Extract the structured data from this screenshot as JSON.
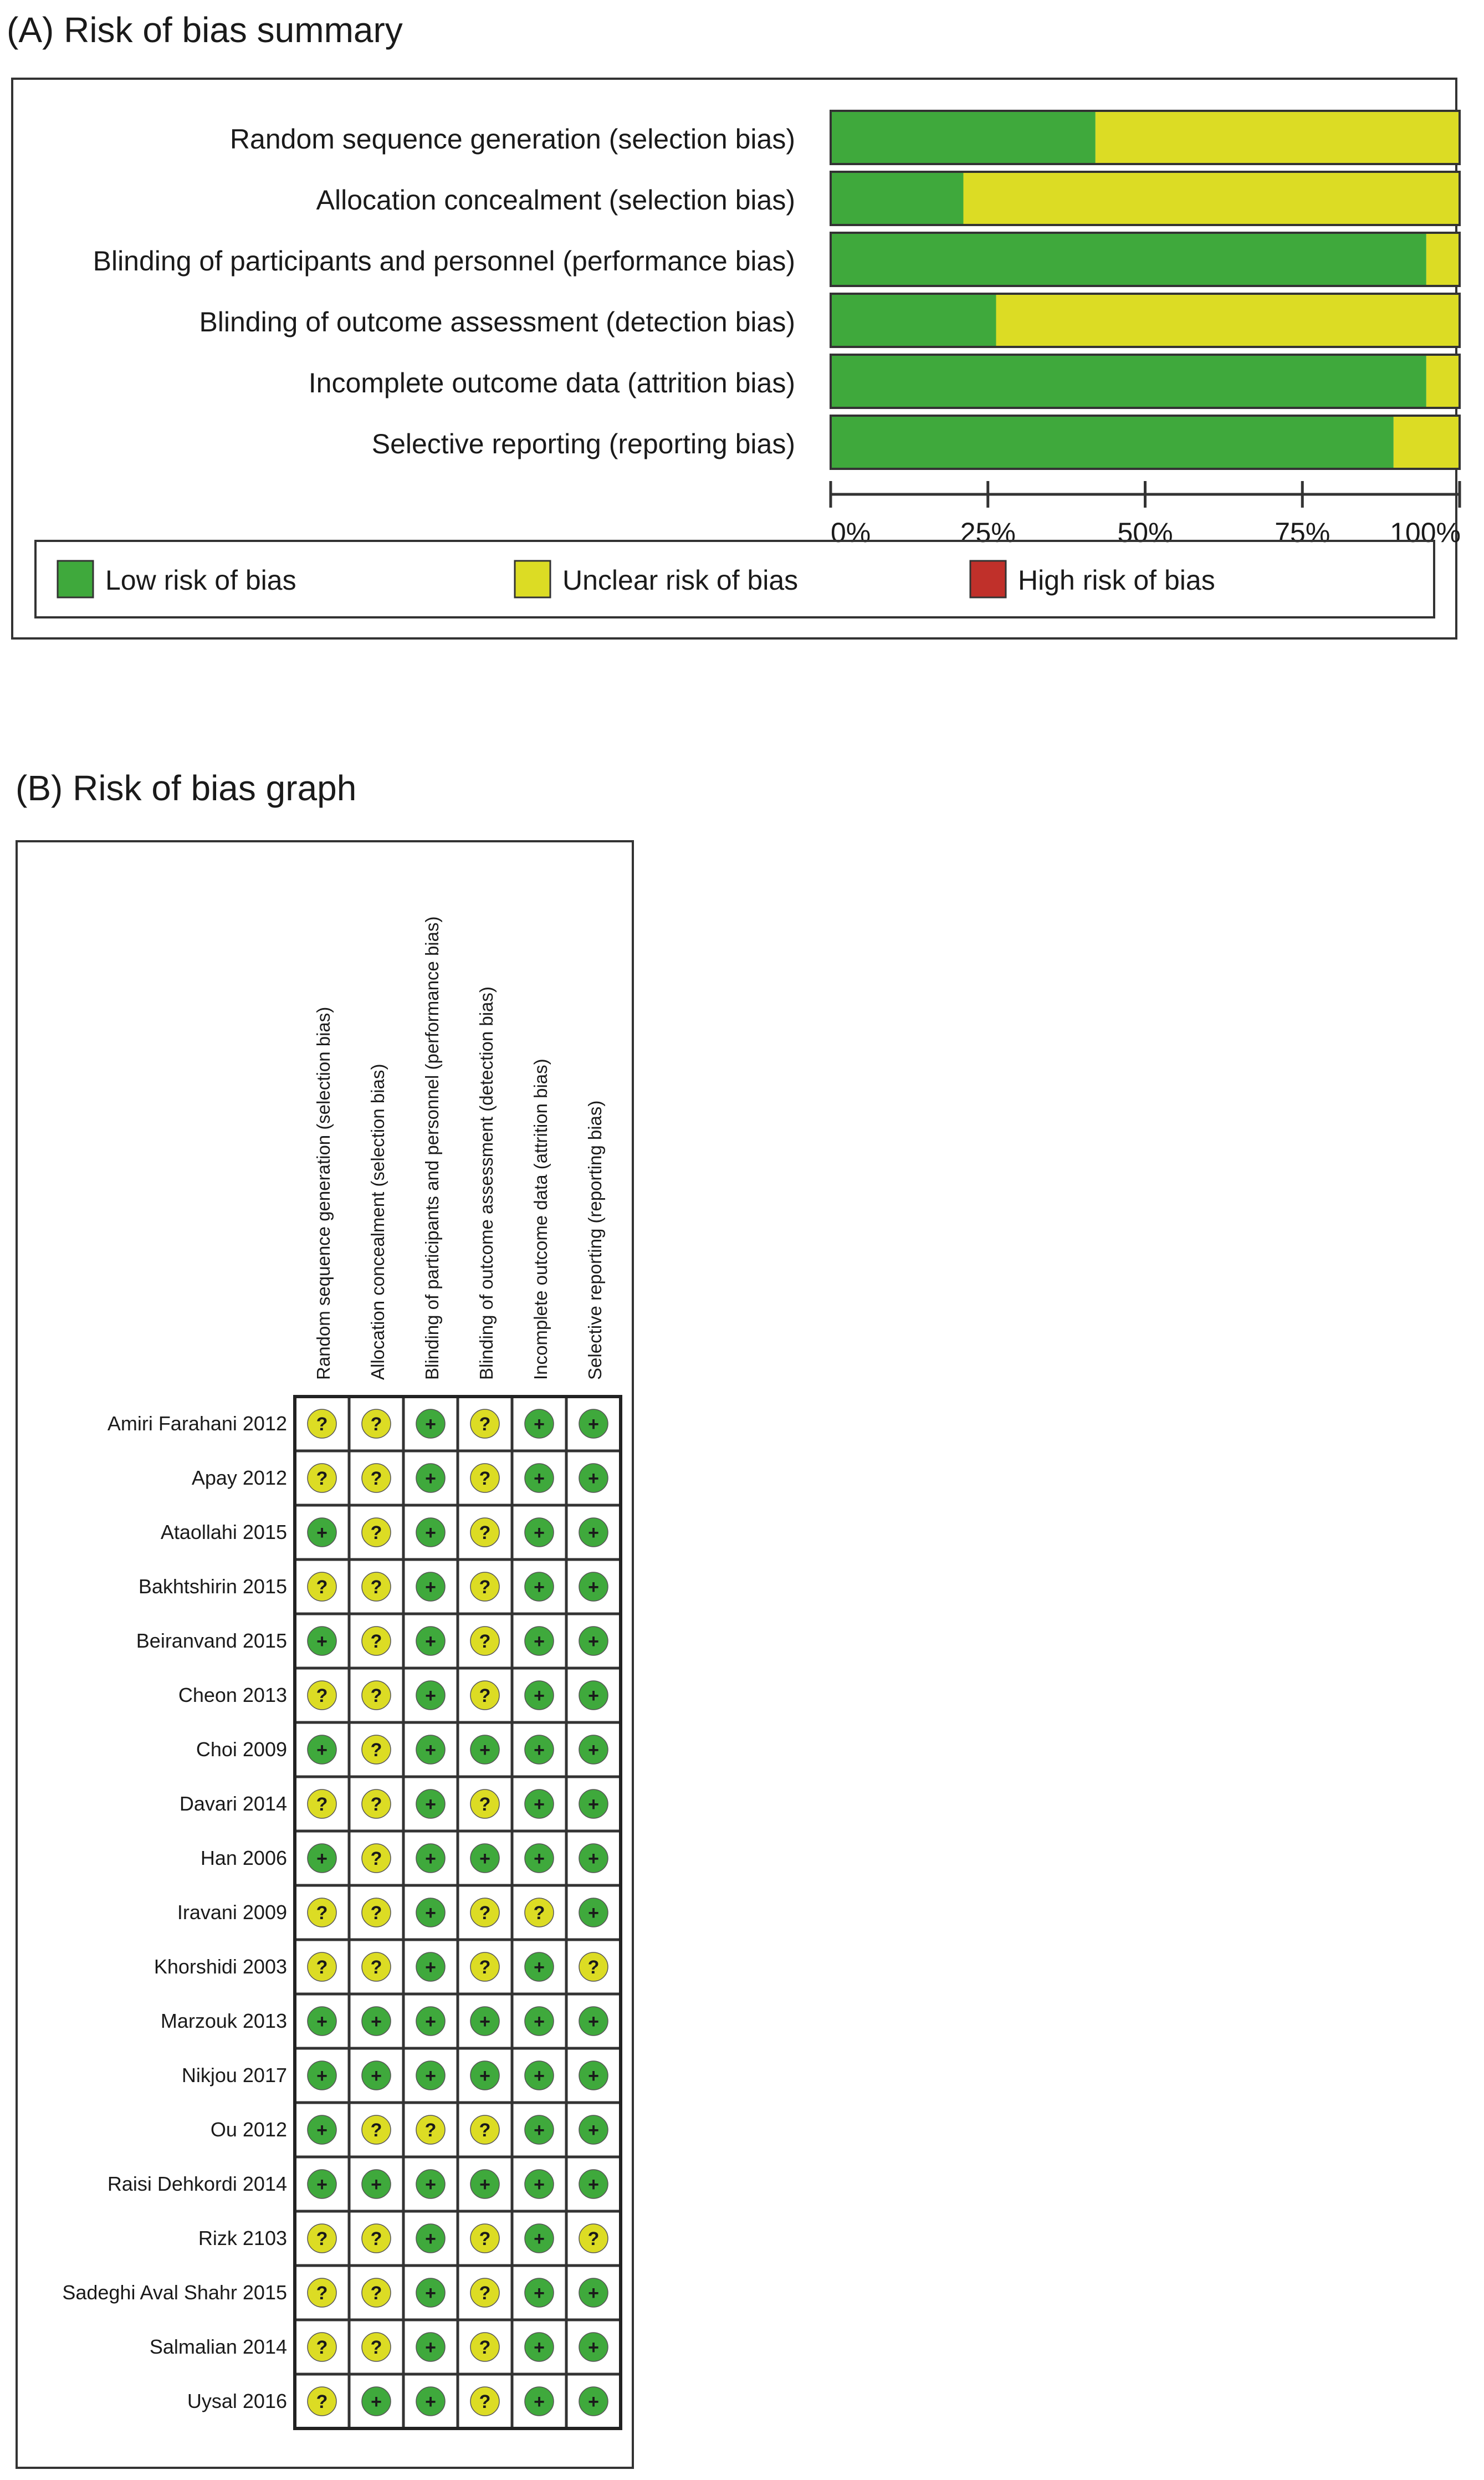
{
  "panel_a": {
    "title": "(A) Risk of bias summary"
  },
  "panel_b": {
    "title": "(B) Risk of bias graph"
  },
  "colors": {
    "low": "#3fa93c",
    "unclear": "#dcdc24",
    "high": "#c0302a",
    "frame": "#333333"
  },
  "chart_data": [
    {
      "type": "bar",
      "stacked": true,
      "orientation": "horizontal",
      "title": "(A) Risk of bias summary",
      "categories": [
        "Random sequence generation (selection bias)",
        "Allocation concealment (selection bias)",
        "Blinding of participants and personnel (performance bias)",
        "Blinding of outcome assessment (detection bias)",
        "Incomplete outcome data (attrition bias)",
        "Selective reporting (reporting bias)"
      ],
      "series": [
        {
          "name": "Low risk of bias",
          "color": "#3fa93c",
          "values": [
            42.1,
            21.1,
            94.7,
            26.3,
            94.7,
            89.5
          ]
        },
        {
          "name": "Unclear risk of bias",
          "color": "#dcdc24",
          "values": [
            57.9,
            78.9,
            5.3,
            73.7,
            5.3,
            10.5
          ]
        },
        {
          "name": "High risk of bias",
          "color": "#c0302a",
          "values": [
            0,
            0,
            0,
            0,
            0,
            0
          ]
        }
      ],
      "xlim": [
        0,
        100
      ],
      "ticks": [
        "0%",
        "25%",
        "50%",
        "75%",
        "100%"
      ],
      "legend_position": "bottom"
    },
    {
      "type": "table",
      "title": "(B) Risk of bias graph",
      "columns": [
        "Random sequence generation (selection bias)",
        "Allocation concealment (selection bias)",
        "Blinding of participants and personnel (performance bias)",
        "Blinding of outcome assessment (detection bias)",
        "Incomplete outcome data (attrition bias)",
        "Selective reporting (reporting bias)"
      ],
      "symbols": {
        "low": "+",
        "unclear": "?"
      },
      "rows": [
        {
          "study": "Amiri Farahani 2012",
          "ratings": [
            "unclear",
            "unclear",
            "low",
            "unclear",
            "low",
            "low"
          ]
        },
        {
          "study": "Apay 2012",
          "ratings": [
            "unclear",
            "unclear",
            "low",
            "unclear",
            "low",
            "low"
          ]
        },
        {
          "study": "Ataollahi 2015",
          "ratings": [
            "low",
            "unclear",
            "low",
            "unclear",
            "low",
            "low"
          ]
        },
        {
          "study": "Bakhtshirin 2015",
          "ratings": [
            "unclear",
            "unclear",
            "low",
            "unclear",
            "low",
            "low"
          ]
        },
        {
          "study": "Beiranvand 2015",
          "ratings": [
            "low",
            "unclear",
            "low",
            "unclear",
            "low",
            "low"
          ]
        },
        {
          "study": "Cheon 2013",
          "ratings": [
            "unclear",
            "unclear",
            "low",
            "unclear",
            "low",
            "low"
          ]
        },
        {
          "study": "Choi 2009",
          "ratings": [
            "low",
            "unclear",
            "low",
            "low",
            "low",
            "low"
          ]
        },
        {
          "study": "Davari 2014",
          "ratings": [
            "unclear",
            "unclear",
            "low",
            "unclear",
            "low",
            "low"
          ]
        },
        {
          "study": "Han 2006",
          "ratings": [
            "low",
            "unclear",
            "low",
            "low",
            "low",
            "low"
          ]
        },
        {
          "study": "Iravani 2009",
          "ratings": [
            "unclear",
            "unclear",
            "low",
            "unclear",
            "unclear",
            "low"
          ]
        },
        {
          "study": "Khorshidi 2003",
          "ratings": [
            "unclear",
            "unclear",
            "low",
            "unclear",
            "low",
            "unclear"
          ]
        },
        {
          "study": "Marzouk 2013",
          "ratings": [
            "low",
            "low",
            "low",
            "low",
            "low",
            "low"
          ]
        },
        {
          "study": "Nikjou 2017",
          "ratings": [
            "low",
            "low",
            "low",
            "low",
            "low",
            "low"
          ]
        },
        {
          "study": "Ou 2012",
          "ratings": [
            "low",
            "unclear",
            "unclear",
            "unclear",
            "low",
            "low"
          ]
        },
        {
          "study": "Raisi Dehkordi 2014",
          "ratings": [
            "low",
            "low",
            "low",
            "low",
            "low",
            "low"
          ]
        },
        {
          "study": "Rizk 2103",
          "ratings": [
            "unclear",
            "unclear",
            "low",
            "unclear",
            "low",
            "unclear"
          ]
        },
        {
          "study": "Sadeghi Aval Shahr 2015",
          "ratings": [
            "unclear",
            "unclear",
            "low",
            "unclear",
            "low",
            "low"
          ]
        },
        {
          "study": "Salmalian 2014",
          "ratings": [
            "unclear",
            "unclear",
            "low",
            "unclear",
            "low",
            "low"
          ]
        },
        {
          "study": "Uysal 2016",
          "ratings": [
            "unclear",
            "low",
            "low",
            "unclear",
            "low",
            "low"
          ]
        }
      ]
    }
  ]
}
